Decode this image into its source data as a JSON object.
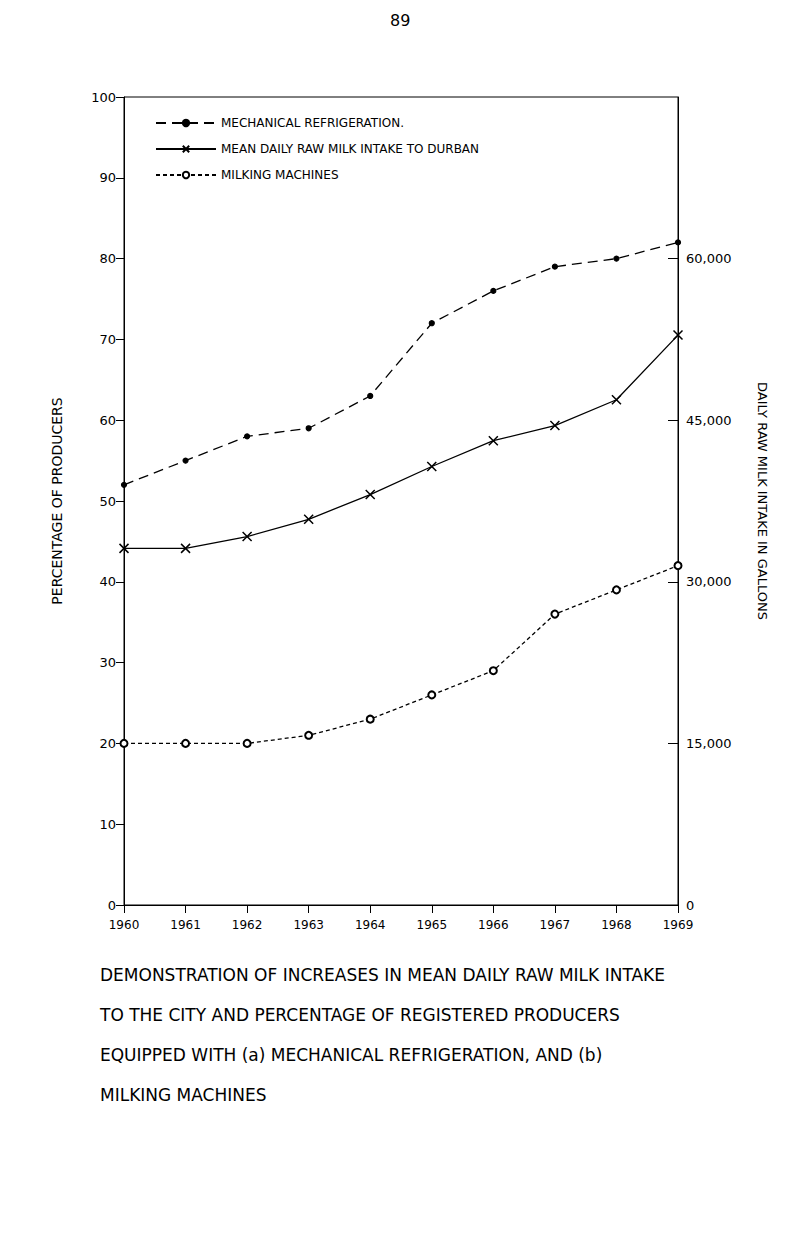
{
  "chart_data": {
    "type": "line",
    "title": "DEMONSTRATION OF INCREASES IN MEAN DAILY RAW MILK INTAKE TO THE CITY AND PERCENTAGE OF REGISTERED PRODUCERS EQUIPPED WITH (a) MECHANICAL REFRIGERATION, AND (b) MILKING MACHINES",
    "annotations": [
      "89"
    ],
    "ylabel": "PERCENTAGE OF PRODUCERS",
    "y2label": "DAILY RAW MILK INTAKE IN GALLONS",
    "x": [
      1960,
      1961,
      1962,
      1963,
      1964,
      1965,
      1966,
      1967,
      1968,
      1969
    ],
    "xlim": [
      1960,
      1969
    ],
    "xticks": [
      1960,
      1961,
      1962,
      1963,
      1964,
      1965,
      1966,
      1967,
      1968,
      1969
    ],
    "ylim": [
      0,
      100
    ],
    "yticks": [
      0,
      10,
      20,
      30,
      40,
      50,
      60,
      70,
      80,
      90,
      100
    ],
    "y2lim": [
      0,
      75000
    ],
    "y2ticks": [
      0,
      {
        "value": 15000,
        "label": "15,000"
      },
      {
        "value": 30000,
        "label": "30,000"
      },
      {
        "value": 45000,
        "label": "45,000"
      },
      {
        "value": 60000,
        "label": "60,000"
      }
    ],
    "grid": false,
    "legend": "upper left",
    "series": [
      {
        "name": "MECHANICAL REFRIGERATION.",
        "color": "#000000",
        "marker": "dot",
        "line_style": "dashed",
        "values": [
          52,
          55,
          58,
          59,
          63,
          72,
          76,
          79,
          80,
          82
        ]
      },
      {
        "name": "MEAN DAILY RAW MILK INTAKE TO DURBAN",
        "color": "#000000",
        "marker": "x",
        "line_style": "solid",
        "axis": "y2",
        "values": [
          33100,
          33100,
          34200,
          35800,
          38100,
          40700,
          43100,
          44500,
          46900,
          52900
        ]
      },
      {
        "name": "MILKING MACHINES",
        "color": "#000000",
        "marker": "open_circle",
        "line_style": "dotted",
        "values": [
          20,
          20,
          20,
          21,
          23,
          26,
          29,
          36,
          39,
          42
        ]
      }
    ]
  }
}
